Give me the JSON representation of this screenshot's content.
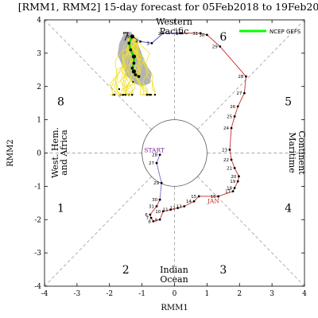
{
  "chart_data": {
    "type": "line",
    "title": "[RMM1, RMM2] 15-day forecast for 05Feb2018 to 19Feb2018",
    "xlabel": "RMM1",
    "ylabel": "RMM2",
    "xlim": [
      -4,
      4
    ],
    "ylim": [
      -4,
      4
    ],
    "x_ticks": [
      "-4",
      "-3",
      "-2",
      "-1",
      "0",
      "1",
      "2",
      "3",
      "4"
    ],
    "y_ticks": [
      "-4",
      "-3",
      "-2",
      "-1",
      "0",
      "1",
      "2",
      "3",
      "4"
    ],
    "phase_labels": [
      "1",
      "2",
      "3",
      "4",
      "5",
      "6",
      "7",
      "8"
    ],
    "region_labels": {
      "top": [
        "Western",
        "Pacific"
      ],
      "right": [
        "Maritime",
        "Continent"
      ],
      "bottom": [
        "Indian",
        "Ocean"
      ],
      "left": [
        "West. Hem.",
        "and Africa"
      ]
    },
    "start_label": "START",
    "month_labels": [
      "JAN"
    ],
    "legend": {
      "name": "NCEP GEFS",
      "color": "#00ff00",
      "position": "top-right"
    },
    "colors": {
      "start_segment": "#7b68c8",
      "january": "#cc2a2a",
      "february": "#3b3bcc",
      "ensemble_members": "#f0e030",
      "ensemble_spread": "#9a9a9a",
      "ensemble_mean": "#00dd00",
      "grid": "#a8a8a8",
      "start_label": "#7b2a9a",
      "month_label": "#cc2a2a"
    },
    "observed_start": [
      {
        "x": -0.45,
        "y": -0.05,
        "day": "28"
      },
      {
        "x": -0.55,
        "y": -0.3,
        "day": "27"
      },
      {
        "x": -0.4,
        "y": -0.9,
        "day": "29"
      }
    ],
    "observed_january": [
      {
        "x": -0.45,
        "y": -1.4,
        "day": "30"
      },
      {
        "x": -0.55,
        "y": -1.6,
        "day": "31"
      },
      {
        "x": -0.75,
        "y": -1.85,
        "day": "6"
      },
      {
        "x": -0.72,
        "y": -1.95,
        "day": "7"
      },
      {
        "x": -0.65,
        "y": -2.05,
        "day": "8"
      },
      {
        "x": -0.45,
        "y": -2.0,
        "day": "9"
      },
      {
        "x": -0.35,
        "y": -1.75,
        "day": "10"
      },
      {
        "x": -0.12,
        "y": -1.7,
        "day": "11"
      },
      {
        "x": 0.1,
        "y": -1.65,
        "day": "12"
      },
      {
        "x": 0.3,
        "y": -1.6,
        "day": "13"
      },
      {
        "x": 0.6,
        "y": -1.45,
        "day": "14"
      },
      {
        "x": 0.75,
        "y": -1.3,
        "day": "15"
      },
      {
        "x": 1.35,
        "y": -1.3,
        "day": "16"
      },
      {
        "x": 1.8,
        "y": -1.15,
        "day": "17"
      },
      {
        "x": 1.85,
        "y": -1.05,
        "day": "18"
      },
      {
        "x": 1.95,
        "y": -0.85,
        "day": "19"
      },
      {
        "x": 1.98,
        "y": -0.7,
        "day": "20"
      },
      {
        "x": 1.85,
        "y": -0.45,
        "day": "21"
      },
      {
        "x": 1.75,
        "y": -0.2,
        "day": "22"
      },
      {
        "x": 1.7,
        "y": 0.1,
        "day": "23"
      },
      {
        "x": 1.75,
        "y": 0.75,
        "day": "24"
      },
      {
        "x": 1.85,
        "y": 1.1,
        "day": "25"
      },
      {
        "x": 1.95,
        "y": 1.4,
        "day": "26"
      },
      {
        "x": 2.15,
        "y": 1.8,
        "day": "27"
      },
      {
        "x": 2.2,
        "y": 2.3,
        "day": "28"
      },
      {
        "x": 1.4,
        "y": 3.2,
        "day": "29"
      },
      {
        "x": 1.0,
        "y": 3.55,
        "day": "30"
      },
      {
        "x": 0.8,
        "y": 3.6,
        "day": "31"
      }
    ],
    "observed_february": [
      {
        "x": 0.2,
        "y": 3.6,
        "day": "1"
      },
      {
        "x": -0.35,
        "y": 3.6,
        "day": "2"
      },
      {
        "x": -0.7,
        "y": 3.3,
        "day": "3"
      },
      {
        "x": -1.05,
        "y": 3.35,
        "day": "4"
      },
      {
        "x": -1.3,
        "y": 3.5,
        "day": "5"
      }
    ],
    "ensemble_mean": [
      {
        "x": -1.3,
        "y": 3.5
      },
      {
        "x": -1.4,
        "y": 3.3
      },
      {
        "x": -1.35,
        "y": 3.1
      },
      {
        "x": -1.25,
        "y": 2.9
      },
      {
        "x": -1.25,
        "y": 2.7
      },
      {
        "x": -1.3,
        "y": 2.55
      },
      {
        "x": -1.25,
        "y": 2.45
      },
      {
        "x": -1.2,
        "y": 2.35
      },
      {
        "x": -1.1,
        "y": 2.3
      }
    ]
  }
}
